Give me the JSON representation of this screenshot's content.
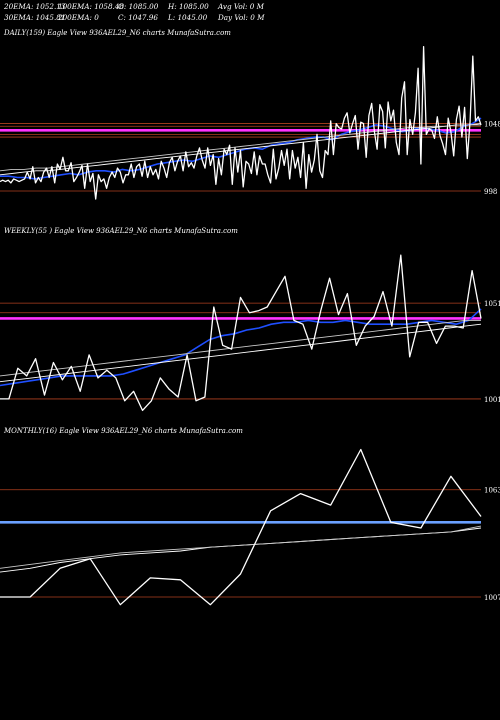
{
  "header": {
    "ema20": "20EMA: 1052.13",
    "ema100": "100EMA: 1058.48",
    "open": "O: 1085.00",
    "high": "H: 1085.00",
    "avg_vol": "Avg Vol: 0  M",
    "ema30": "30EMA: 1045.81",
    "ema200": "200EMA: 0",
    "close": "C: 1047.96",
    "low": "L: 1045.00",
    "day_vol": "Day Vol: 0  M"
  },
  "colors": {
    "background": "#000000",
    "price": "#ffffff",
    "ema_blue": "#1f4fff",
    "level_line": "#b0401f",
    "magenta_band": "#ff33ff",
    "sky_band": "#6aa0ff",
    "ema_grey": "#c8c8c8"
  },
  "chart_data": [
    {
      "type": "line",
      "title": "DAILY(159) Eagle  View  936AEL29_N6  charts MunafaSutra.com",
      "ylim": [
        975,
        1110
      ],
      "y_ticks": [
        {
          "label": "1048",
          "value": 1048
        },
        {
          "label": "998",
          "value": 998
        }
      ],
      "level_lines": [
        1048,
        1046,
        1040,
        1038,
        998
      ],
      "band": {
        "value": 1043,
        "color": "magenta"
      },
      "series": [
        {
          "role": "price",
          "color": "white",
          "values": [
            1005,
            1006,
            1005,
            1006,
            1004,
            1007,
            1006,
            1005,
            1006,
            1007,
            1012,
            1007,
            1016,
            1004,
            1008,
            1005,
            1012,
            1015,
            1008,
            1016,
            1004,
            1018,
            1014,
            1023,
            1013,
            1013,
            1019,
            1005,
            1008,
            1012,
            1017,
            1000,
            1018,
            1005,
            1011,
            992,
            1010,
            1005,
            1007,
            1000,
            1008,
            1012,
            1008,
            1015,
            1012,
            1004,
            1010,
            1010,
            1018,
            1008,
            1016,
            1018,
            1009,
            1020,
            1008,
            1016,
            1010,
            1014,
            1007,
            1020,
            1015,
            1008,
            1019,
            1023,
            1013,
            1020,
            1024,
            1013,
            1027,
            1016,
            1019,
            1015,
            1024,
            1030,
            1021,
            1015,
            1030,
            1017,
            1025,
            1003,
            1022,
            1010,
            1029,
            1025,
            1032,
            1003,
            1030,
            1012,
            1028,
            1001,
            1020,
            1018,
            1011,
            1027,
            1010,
            1024,
            1018,
            1018,
            1010,
            1004,
            1029,
            1007,
            1015,
            1028,
            1017,
            1029,
            1007,
            1028,
            1015,
            1023,
            1008,
            1034,
            1000,
            1025,
            1012,
            1021,
            1040,
            1013,
            1008,
            1028,
            1025,
            1050,
            1025,
            1048,
            1045,
            1044,
            1052,
            1056,
            1041,
            1048,
            1054,
            1029,
            1049,
            1048,
            1023,
            1054,
            1063,
            1042,
            1029,
            1062,
            1057,
            1030,
            1064,
            1050,
            1058,
            1034,
            1025,
            1067,
            1079,
            1025,
            1051,
            1040,
            1056,
            1089,
            1018,
            1105,
            1040,
            1044,
            1043,
            1037,
            1053,
            1039,
            1033,
            1025,
            1052,
            1042,
            1024,
            1051,
            1061,
            1038,
            1060,
            1022,
            1050,
            1098,
            1050,
            1053,
            1047
          ]
        },
        {
          "role": "ema",
          "color": "blue",
          "values": [
            1009,
            1009,
            1008,
            1008,
            1007,
            1008,
            1009,
            1010,
            1011,
            1010,
            1012,
            1013,
            1013,
            1012,
            1014,
            1013,
            1014,
            1016,
            1018,
            1019,
            1020,
            1021,
            1020,
            1022,
            1024,
            1023,
            1025,
            1027,
            1029,
            1030,
            1029,
            1032,
            1033,
            1034,
            1036,
            1037,
            1038,
            1038,
            1036,
            1040,
            1042,
            1043,
            1045,
            1047,
            1046,
            1044,
            1042,
            1043,
            1045,
            1044,
            1043,
            1041,
            1042,
            1046,
            1048,
            1052
          ]
        },
        {
          "role": "ema",
          "color": "white",
          "values": [
            1010,
            1011,
            1012,
            1013,
            1013,
            1014,
            1015,
            1016,
            1017,
            1018,
            1019,
            1020,
            1021,
            1022,
            1023,
            1024,
            1025,
            1026,
            1027,
            1028,
            1029,
            1030,
            1031,
            1032,
            1033,
            1034,
            1035,
            1036,
            1037,
            1038,
            1039,
            1040,
            1041,
            1042,
            1043,
            1044,
            1045,
            1046,
            1047,
            1047,
            1048
          ]
        },
        {
          "role": "ema",
          "color": "grey",
          "values": [
            1013,
            1014,
            1014,
            1015,
            1015,
            1016,
            1017,
            1018,
            1019,
            1020,
            1021,
            1022,
            1023,
            1024,
            1025,
            1026,
            1027,
            1028,
            1029,
            1030,
            1031,
            1032,
            1033,
            1034,
            1035,
            1036,
            1037,
            1038,
            1039,
            1040,
            1041,
            1042,
            1043,
            1044,
            1045,
            1045,
            1046,
            1046,
            1047,
            1047,
            1047
          ]
        }
      ]
    },
    {
      "type": "line",
      "title": "WEEKLY(55                  ) Eagle  View  936AEL29_N6  charts MunafaSutra.com",
      "ylim": [
        990,
        1085
      ],
      "y_ticks": [
        {
          "label": "1051",
          "value": 1051
        },
        {
          "label": "1001",
          "value": 1001
        }
      ],
      "level_lines": [
        1051,
        1046,
        1001
      ],
      "band": {
        "value": 1043,
        "color": "magenta"
      },
      "series": [
        {
          "role": "price",
          "color": "white",
          "values": [
            1001,
            1001,
            1017,
            1013,
            1022,
            1003,
            1020,
            1011,
            1018,
            1005,
            1024,
            1012,
            1016,
            1012,
            1000,
            1005,
            995,
            1000,
            1012,
            1006,
            1002,
            1024,
            1000,
            1002,
            1049,
            1029,
            1027,
            1054,
            1046,
            1047,
            1049,
            1057,
            1065,
            1042,
            1040,
            1027,
            1047,
            1064,
            1045,
            1056,
            1029,
            1039,
            1044,
            1057,
            1039,
            1076,
            1023,
            1041,
            1041,
            1030,
            1039,
            1039,
            1038,
            1068,
            1043
          ]
        },
        {
          "role": "ema",
          "color": "blue",
          "values": [
            1008,
            1009,
            1010,
            1011,
            1012,
            1013,
            1013,
            1013,
            1013,
            1013,
            1014,
            1016,
            1018,
            1020,
            1022,
            1024,
            1028,
            1032,
            1034,
            1035,
            1037,
            1038,
            1040,
            1041,
            1041,
            1042,
            1041,
            1041,
            1042,
            1041,
            1040,
            1040,
            1040,
            1040,
            1041,
            1042,
            1041,
            1040,
            1042,
            1048
          ]
        },
        {
          "role": "ema",
          "color": "white",
          "values": [
            1010,
            1011,
            1012,
            1013,
            1014,
            1015,
            1016,
            1017,
            1018,
            1019,
            1020,
            1021,
            1022,
            1023,
            1024,
            1025,
            1026,
            1027,
            1028,
            1029,
            1030,
            1031,
            1032,
            1033,
            1034,
            1035,
            1036,
            1037,
            1038,
            1039,
            1040
          ]
        },
        {
          "role": "ema",
          "color": "grey",
          "values": [
            1013,
            1014,
            1015,
            1016,
            1017,
            1018,
            1019,
            1020,
            1021,
            1022,
            1023,
            1024,
            1025,
            1026,
            1027,
            1028,
            1029,
            1030,
            1031,
            1032,
            1033,
            1034,
            1035,
            1036,
            1037,
            1038,
            1039,
            1040,
            1041,
            1042,
            1042
          ]
        }
      ]
    },
    {
      "type": "line",
      "title": "MONTHLY(16) Eagle  View  936AEL29_N6  charts MunafaSutra.com",
      "ylim": [
        995,
        1090
      ],
      "y_ticks": [
        {
          "label": "1063",
          "value": 1063
        },
        {
          "label": "1007",
          "value": 1007
        }
      ],
      "level_lines": [
        1063,
        1007
      ],
      "band": {
        "value": 1046,
        "color": "sky"
      },
      "series": [
        {
          "role": "price",
          "color": "white",
          "values": [
            1007,
            1007,
            1022,
            1027,
            1003,
            1017,
            1016,
            1003,
            1019,
            1052,
            1061,
            1055,
            1084,
            1046,
            1043,
            1070,
            1049
          ]
        },
        {
          "role": "ema",
          "color": "white",
          "values": [
            1020,
            1022,
            1025,
            1027,
            1029,
            1030,
            1031,
            1033,
            1034,
            1035,
            1036,
            1037,
            1038,
            1039,
            1040,
            1041,
            1043
          ]
        },
        {
          "role": "ema",
          "color": "grey",
          "values": [
            1022,
            1024,
            1026,
            1028,
            1030,
            1031,
            1032,
            1033,
            1034,
            1035,
            1036,
            1037,
            1038,
            1039,
            1040,
            1041,
            1044
          ]
        }
      ]
    }
  ]
}
